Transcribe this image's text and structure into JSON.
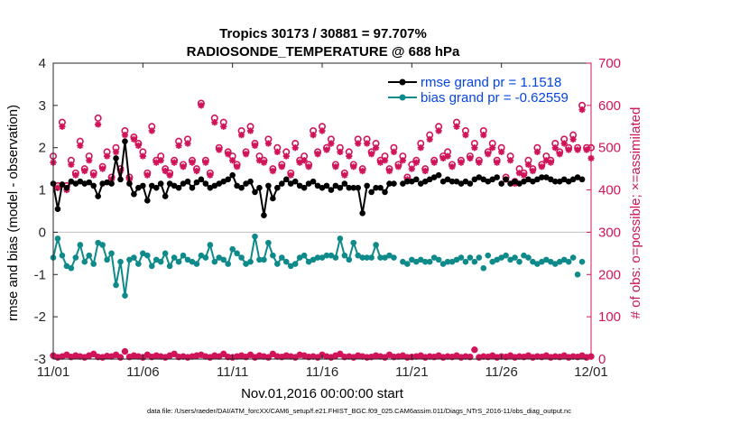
{
  "colors": {
    "rmse": "#000000",
    "bias": "#0e8a8a",
    "obs": "#d0145a",
    "legend_text": "#0645e0",
    "zero_line": "#bfbfbf"
  },
  "chart_data": {
    "type": "line",
    "title_line1": "Tropics 30173 / 30881 = 97.707%",
    "title_line2": "RADIOSONDE_TEMPERATURE @ 688 hPa",
    "xlabel": "Nov.01,2016 00:00:00 start",
    "ylabel_left": "rmse and bias (model - observation)",
    "ylabel_right": "# of obs: o=possible; ×=assimilated",
    "ylim_left": [
      -3,
      4
    ],
    "ylim_right": [
      0,
      700
    ],
    "xlim": [
      0,
      30
    ],
    "x_ticks": [
      {
        "value": 0,
        "label": "11/01"
      },
      {
        "value": 5,
        "label": "11/06"
      },
      {
        "value": 10,
        "label": "11/11"
      },
      {
        "value": 15,
        "label": "11/16"
      },
      {
        "value": 20,
        "label": "11/21"
      },
      {
        "value": 25,
        "label": "11/26"
      },
      {
        "value": 30,
        "label": "12/01"
      }
    ],
    "y_ticks_left": [
      "-3",
      "-2",
      "-1",
      "0",
      "1",
      "2",
      "3",
      "4"
    ],
    "y_ticks_right": [
      "0",
      "100",
      "200",
      "300",
      "400",
      "500",
      "600",
      "700"
    ],
    "legend": [
      {
        "name": "rmse grand pr = 1.1518",
        "series": "rmse"
      },
      {
        "name": "bias grand pr = -0.62559",
        "series": "bias"
      }
    ],
    "footer": "data file: /Users/raeder/DAI/ATM_forcXX/CAM6_setup/f.e21.FHIST_BGC.f09_025.CAM6assim.011/Diags_NTrS_2016-11/obs_diag_output.nc",
    "rmse_series": [
      {
        "x": [
          0.0,
          0.25,
          0.5,
          0.75,
          1.0,
          1.25,
          1.5,
          1.75,
          2.0,
          2.25,
          2.5,
          2.75,
          3.0,
          3.25,
          3.5,
          3.75,
          4.0,
          4.25,
          4.5,
          4.75,
          5.0,
          5.25,
          5.5,
          5.75,
          6.0,
          6.25,
          6.5,
          6.75,
          7.0,
          7.25,
          7.5,
          7.75,
          8.0,
          8.25,
          8.5,
          8.75,
          9.0,
          9.25,
          9.5,
          9.75,
          10.0,
          10.25,
          10.5,
          10.75,
          11.0,
          11.25,
          11.5,
          11.75,
          12.0,
          12.25,
          12.5,
          12.75,
          13.0,
          13.25,
          13.5,
          13.75,
          14.0,
          14.25,
          14.5,
          14.75,
          15.0,
          15.25,
          15.5,
          15.75,
          16.0,
          16.25,
          16.5,
          16.75,
          17.0,
          17.25,
          17.5
        ],
        "y": [
          1.15,
          0.55,
          1.13,
          1.05,
          1.2,
          1.15,
          1.2,
          1.15,
          1.18,
          1.1,
          0.85,
          1.15,
          1.18,
          1.15,
          1.75,
          1.25,
          2.15,
          1.15,
          0.9,
          1.05,
          1.1,
          0.75,
          1.1,
          1.05,
          1.15,
          0.85,
          1.15,
          1.1,
          1.05,
          1.15,
          1.2,
          1.05,
          1.18,
          1.25,
          1.15,
          1.05,
          1.1,
          1.15,
          1.2,
          1.25,
          1.35,
          1.1,
          1.05,
          1.15,
          1.2,
          0.95,
          1.05,
          0.4,
          1.1,
          0.8,
          1.05,
          1.15,
          1.25,
          1.15,
          1.2,
          1.1,
          1.05,
          1.15,
          1.2,
          1.1,
          1.05,
          1.1,
          1.0,
          1.1,
          1.05,
          1.15,
          1.05,
          1.05,
          1.05,
          0.45,
          1.1
        ]
      },
      {
        "x": [
          17.75,
          18.0,
          18.25,
          18.5,
          18.75,
          19.0
        ],
        "y": [
          0.95,
          1.05,
          1.05,
          0.95,
          1.15,
          1.15
        ]
      }
    ],
    "rmse_markers": {
      "x": [
        19.5,
        19.75,
        20.0,
        20.25,
        20.5,
        20.75,
        21.0,
        21.25,
        21.5,
        21.75,
        22.0,
        22.25,
        22.5,
        22.75,
        23.0,
        23.25,
        23.5,
        23.75,
        24.0,
        24.25,
        24.5,
        24.75,
        25.0,
        25.25,
        25.5,
        25.75,
        26.0,
        26.25,
        26.5,
        26.75,
        27.0,
        27.25,
        27.5,
        27.75,
        28.0,
        28.25,
        28.5,
        28.75,
        29.0,
        29.25,
        29.5
      ],
      "y": [
        1.15,
        1.2,
        1.2,
        1.25,
        1.15,
        1.2,
        1.25,
        1.3,
        1.35,
        1.2,
        1.25,
        1.2,
        1.2,
        1.15,
        1.2,
        1.15,
        1.25,
        1.3,
        1.25,
        1.2,
        1.25,
        1.3,
        1.15,
        1.25,
        1.15,
        1.2,
        1.15,
        1.2,
        1.25,
        1.2,
        1.25,
        1.3,
        1.3,
        1.25,
        1.2,
        1.2,
        1.25,
        1.2,
        1.25,
        1.3,
        1.25
      ]
    },
    "bias_series": [
      {
        "x": [
          0.0,
          0.25,
          0.5,
          0.75,
          1.0,
          1.25,
          1.5,
          1.75,
          2.0,
          2.25,
          2.5,
          2.75,
          3.0,
          3.25,
          3.5,
          3.75,
          4.0,
          4.25,
          4.5,
          4.75,
          5.0,
          5.25,
          5.5,
          5.75,
          6.0,
          6.25,
          6.5,
          6.75,
          7.0,
          7.25,
          7.5,
          7.75,
          8.0,
          8.25,
          8.5,
          8.75,
          9.0,
          9.25,
          9.5,
          9.75,
          10.0,
          10.25,
          10.5,
          10.75,
          11.0,
          11.25,
          11.5,
          11.75,
          12.0,
          12.25,
          12.5,
          12.75,
          13.0,
          13.25,
          13.5,
          13.75,
          14.0,
          14.25,
          14.5,
          14.75,
          15.0,
          15.25,
          15.5,
          15.75,
          16.0,
          16.25,
          16.5,
          16.75,
          17.0,
          17.25,
          17.5
        ],
        "y": [
          -0.6,
          -0.15,
          -0.55,
          -0.8,
          -0.85,
          -0.6,
          -0.3,
          -0.7,
          -0.55,
          -0.75,
          -0.25,
          -0.3,
          -0.65,
          -0.5,
          -1.25,
          -0.7,
          -1.5,
          -0.65,
          -0.6,
          -0.75,
          -0.5,
          -0.55,
          -0.8,
          -0.65,
          -0.7,
          -0.5,
          -0.8,
          -0.6,
          -0.7,
          -0.55,
          -0.65,
          -0.7,
          -0.75,
          -0.55,
          -0.6,
          -0.3,
          -0.7,
          -0.6,
          -0.65,
          -0.75,
          -0.4,
          -0.5,
          -0.6,
          -0.75,
          -0.7,
          -0.1,
          -0.65,
          -0.65,
          -0.25,
          -0.55,
          -0.75,
          -0.6,
          -0.7,
          -0.8,
          -0.75,
          -0.6,
          -0.55,
          -0.7,
          -0.65,
          -0.6,
          -0.6,
          -0.55,
          -0.55,
          -0.6,
          -0.15,
          -0.55,
          -0.65,
          -0.25,
          -0.55,
          -0.6,
          -0.6
        ]
      },
      {
        "x": [
          17.75,
          18.0,
          18.25,
          18.5,
          18.75,
          19.0
        ],
        "y": [
          -0.6,
          -0.3,
          -0.6,
          -0.6,
          -0.55,
          -0.6
        ]
      }
    ],
    "bias_markers": {
      "x": [
        19.5,
        19.75,
        20.0,
        20.25,
        20.5,
        20.75,
        21.0,
        21.25,
        21.5,
        21.75,
        22.0,
        22.25,
        22.5,
        22.75,
        23.0,
        23.25,
        23.5,
        23.75,
        24.0,
        24.25,
        24.5,
        24.75,
        25.0,
        25.25,
        25.5,
        25.75,
        26.0,
        26.25,
        26.5,
        26.75,
        27.0,
        27.25,
        27.5,
        27.75,
        28.0,
        28.25,
        28.5,
        28.75,
        29.0,
        29.25,
        29.5
      ],
      "y": [
        -0.7,
        -0.75,
        -0.65,
        -0.7,
        -0.65,
        -0.7,
        -0.7,
        -0.6,
        -0.65,
        -0.75,
        -0.7,
        -0.7,
        -0.65,
        -0.6,
        -0.7,
        -0.6,
        -0.7,
        -0.6,
        -0.85,
        -0.55,
        -0.7,
        -0.65,
        -0.6,
        -0.55,
        -0.65,
        -0.6,
        -0.7,
        -0.55,
        -0.6,
        -0.7,
        -0.75,
        -0.7,
        -0.65,
        -0.7,
        -0.75,
        -0.7,
        -0.65,
        -0.7,
        -0.6,
        -1.0,
        -0.7
      ]
    },
    "obs_possible": {
      "x": [
        0.0,
        0.25,
        0.5,
        0.75,
        1.0,
        1.25,
        1.5,
        1.75,
        2.0,
        2.25,
        2.5,
        2.75,
        3.0,
        3.25,
        3.5,
        3.75,
        4.0,
        4.25,
        4.5,
        4.75,
        5.0,
        5.25,
        5.5,
        5.75,
        6.0,
        6.25,
        6.5,
        6.75,
        7.0,
        7.25,
        7.5,
        7.75,
        8.0,
        8.25,
        8.5,
        8.75,
        9.0,
        9.25,
        9.5,
        9.75,
        10.0,
        10.25,
        10.5,
        10.75,
        11.0,
        11.25,
        11.5,
        11.75,
        12.0,
        12.25,
        12.5,
        12.75,
        13.0,
        13.25,
        13.5,
        13.75,
        14.0,
        14.25,
        14.5,
        14.75,
        15.0,
        15.25,
        15.5,
        15.75,
        16.0,
        16.25,
        16.5,
        16.75,
        17.0,
        17.25,
        17.5,
        17.75,
        18.0,
        18.25,
        18.5,
        18.75,
        19.0,
        19.25,
        19.5,
        19.75,
        20.0,
        20.25,
        20.5,
        20.75,
        21.0,
        21.25,
        21.5,
        21.75,
        22.0,
        22.25,
        22.5,
        22.75,
        23.0,
        23.25,
        23.5,
        23.75,
        24.0,
        24.25,
        24.5,
        24.75,
        25.0,
        25.25,
        25.5,
        25.75,
        26.0,
        26.25,
        26.5,
        26.75,
        27.0,
        27.25,
        27.5,
        27.75,
        28.0,
        28.25,
        28.5,
        28.75,
        29.0,
        29.25,
        29.5,
        29.75,
        30.0
      ],
      "y": [
        480,
        410,
        560,
        410,
        470,
        440,
        515,
        450,
        480,
        440,
        570,
        455,
        490,
        430,
        500,
        450,
        540,
        430,
        525,
        510,
        490,
        440,
        550,
        470,
        480,
        450,
        440,
        470,
        515,
        460,
        520,
        470,
        450,
        605,
        470,
        440,
        570,
        500,
        560,
        490,
        480,
        460,
        540,
        490,
        550,
        510,
        480,
        470,
        520,
        450,
        500,
        460,
        490,
        440,
        510,
        470,
        480,
        460,
        540,
        490,
        550,
        500,
        520,
        460,
        500,
        440,
        490,
        460,
        520,
        450,
        520,
        490,
        510,
        470,
        480,
        450,
        500,
        460,
        480,
        430,
        460,
        470,
        510,
        450,
        530,
        470,
        550,
        480,
        490,
        460,
        560,
        470,
        540,
        480,
        510,
        470,
        540,
        490,
        510,
        470,
        500,
        430,
        480,
        420,
        450,
        440,
        470,
        450,
        500,
        460,
        480,
        470,
        510,
        490,
        520,
        500,
        530,
        500,
        600,
        500,
        500
      ]
    },
    "obs_assimilated": {
      "x": [
        0.0,
        0.25,
        0.5,
        0.75,
        1.0,
        1.25,
        1.5,
        1.75,
        2.0,
        2.25,
        2.5,
        2.75,
        3.0,
        3.25,
        3.5,
        3.75,
        4.0,
        4.25,
        4.5,
        4.75,
        5.0,
        5.25,
        5.5,
        5.75,
        6.0,
        6.25,
        6.5,
        6.75,
        7.0,
        7.25,
        7.5,
        7.75,
        8.0,
        8.25,
        8.5,
        8.75,
        9.0,
        9.25,
        9.5,
        9.75,
        10.0,
        10.25,
        10.5,
        10.75,
        11.0,
        11.25,
        11.5,
        11.75,
        12.0,
        12.25,
        12.5,
        12.75,
        13.0,
        13.25,
        13.5,
        13.75,
        14.0,
        14.25,
        14.5,
        14.75,
        15.0,
        15.25,
        15.5,
        15.75,
        16.0,
        16.25,
        16.5,
        16.75,
        17.0,
        17.25,
        17.5,
        17.75,
        18.0,
        18.25,
        18.5,
        18.75,
        19.0,
        19.25,
        19.5,
        19.75,
        20.0,
        20.25,
        20.5,
        20.75,
        21.0,
        21.25,
        21.5,
        21.75,
        22.0,
        22.25,
        22.5,
        22.75,
        23.0,
        23.25,
        23.5,
        23.75,
        24.0,
        24.25,
        24.5,
        24.75,
        25.0,
        25.25,
        25.5,
        25.75,
        26.0,
        26.25,
        26.5,
        26.75,
        27.0,
        27.25,
        27.5,
        27.75,
        28.0,
        28.25,
        28.5,
        28.75,
        29.0,
        29.25,
        29.5,
        29.75,
        30.0
      ],
      "y": [
        465,
        405,
        550,
        400,
        460,
        435,
        505,
        445,
        470,
        435,
        555,
        450,
        480,
        425,
        490,
        445,
        530,
        425,
        520,
        505,
        480,
        435,
        540,
        465,
        470,
        445,
        435,
        465,
        505,
        455,
        510,
        465,
        445,
        600,
        465,
        435,
        560,
        495,
        550,
        485,
        470,
        455,
        530,
        485,
        540,
        505,
        470,
        465,
        510,
        445,
        490,
        455,
        480,
        435,
        500,
        465,
        470,
        455,
        530,
        485,
        540,
        495,
        510,
        455,
        490,
        435,
        480,
        455,
        510,
        445,
        510,
        485,
        500,
        465,
        470,
        445,
        490,
        455,
        470,
        425,
        450,
        465,
        500,
        445,
        520,
        465,
        540,
        475,
        480,
        455,
        550,
        465,
        530,
        475,
        500,
        465,
        530,
        485,
        500,
        465,
        490,
        425,
        470,
        415,
        440,
        435,
        460,
        445,
        490,
        455,
        470,
        465,
        500,
        485,
        510,
        495,
        520,
        495,
        590,
        495,
        475
      ]
    },
    "obs_rejected_possible": {
      "x": [
        0.0,
        0.25,
        0.5,
        0.75,
        1.0,
        1.25,
        1.5,
        1.75,
        2.0,
        2.25,
        2.5,
        2.75,
        3.0,
        3.25,
        3.5,
        3.75,
        4.0,
        4.25,
        4.5,
        4.75,
        5.0,
        5.25,
        5.5,
        5.75,
        6.0,
        6.25,
        6.5,
        6.75,
        7.0,
        7.25,
        7.5,
        7.75,
        8.0,
        8.25,
        8.5,
        8.75,
        9.0,
        9.25,
        9.5,
        9.75,
        10.0,
        10.25,
        10.5,
        10.75,
        11.0,
        11.25,
        11.5,
        11.75,
        12.0,
        12.25,
        12.5,
        12.75,
        13.0,
        13.25,
        13.5,
        13.75,
        14.0,
        14.25,
        14.5,
        14.75,
        15.0,
        15.25,
        15.5,
        15.75,
        16.0,
        16.25,
        16.5,
        16.75,
        17.0,
        17.25,
        17.5,
        17.75,
        18.0,
        18.25,
        18.5,
        18.75,
        19.0,
        19.25,
        19.5,
        19.75,
        20.0,
        20.25,
        20.5,
        20.75,
        21.0,
        21.25,
        21.5,
        21.75,
        22.0,
        22.25,
        22.5,
        22.75,
        23.0,
        23.25,
        23.5,
        23.75,
        24.0,
        24.25,
        24.5,
        24.75,
        25.0,
        25.25,
        25.5,
        25.75,
        26.0,
        26.25,
        26.5,
        26.75,
        27.0,
        27.25,
        27.5,
        27.75,
        28.0,
        28.25,
        28.5,
        28.75,
        29.0,
        29.25,
        29.5,
        29.75,
        30.0
      ],
      "y": [
        8,
        4,
        6,
        10,
        5,
        8,
        6,
        4,
        8,
        12,
        5,
        4,
        7,
        6,
        10,
        4,
        18,
        5,
        8,
        6,
        4,
        10,
        5,
        8,
        6,
        4,
        8,
        12,
        5,
        6,
        4,
        6,
        8,
        10,
        6,
        4,
        8,
        6,
        12,
        5,
        4,
        6,
        8,
        5,
        10,
        4,
        8,
        6,
        4,
        12,
        6,
        5,
        8,
        6,
        4,
        10,
        8,
        5,
        6,
        4,
        10,
        6,
        4,
        8,
        12,
        5,
        6,
        4,
        8,
        6,
        4,
        5,
        8,
        6,
        4,
        10,
        5,
        6,
        8,
        4,
        5,
        6,
        8,
        4,
        6,
        5,
        8,
        4,
        6,
        5,
        8,
        4,
        6,
        5,
        22,
        4,
        6,
        5,
        8,
        4,
        6,
        5,
        8,
        4,
        6,
        5,
        8,
        4,
        6,
        5,
        8,
        4,
        6,
        5,
        8,
        4,
        6,
        5,
        8,
        4,
        6
      ]
    }
  }
}
